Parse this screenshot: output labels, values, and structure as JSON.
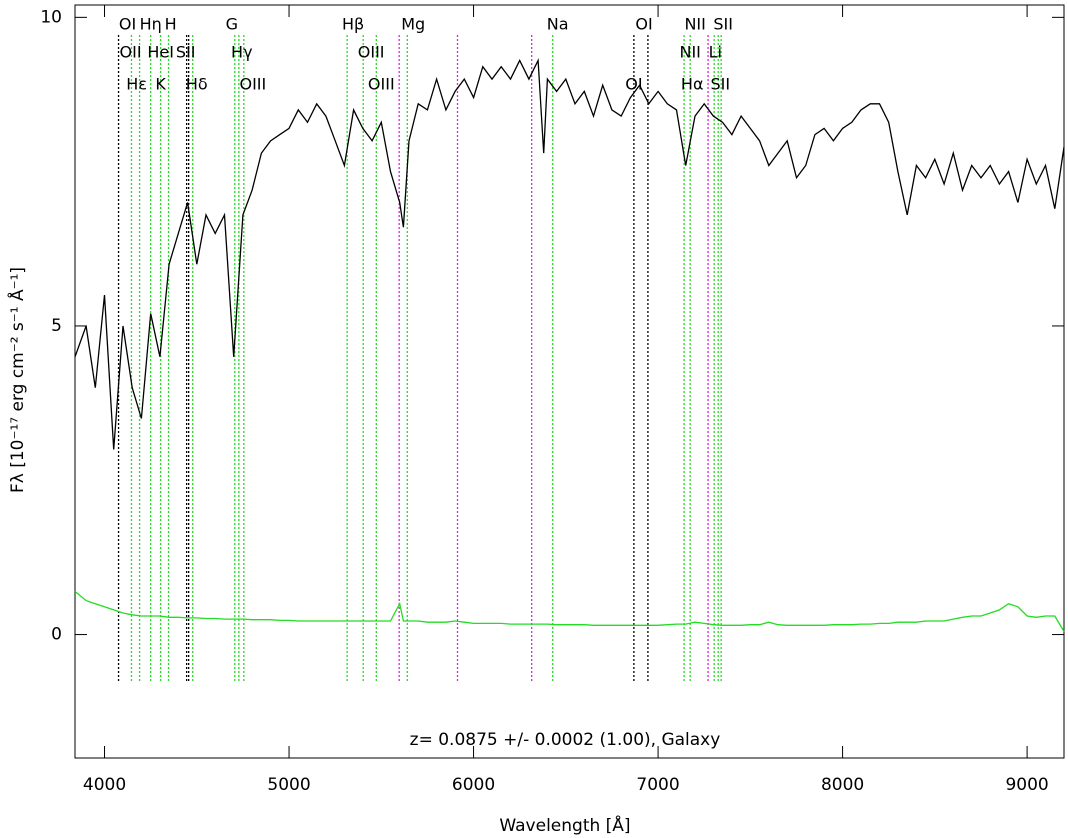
{
  "chart_data": {
    "type": "line",
    "xlabel": "Wavelength [Å]",
    "ylabel": "Fλ [10⁻¹⁷ erg cm⁻² s⁻¹ Å⁻¹]",
    "annotation": "z= 0.0875 +/- 0.0002 (1.00), Galaxy",
    "xlim": [
      3840,
      9200
    ],
    "ylim": [
      -2,
      10.2
    ],
    "xticks": [
      4000,
      5000,
      6000,
      7000,
      8000,
      9000
    ],
    "yticks": [
      0,
      5,
      10
    ],
    "x": [
      3840,
      3900,
      3950,
      4000,
      4050,
      4100,
      4150,
      4200,
      4250,
      4300,
      4350,
      4400,
      4450,
      4500,
      4550,
      4600,
      4650,
      4700,
      4750,
      4800,
      4850,
      4900,
      4950,
      5000,
      5050,
      5100,
      5150,
      5200,
      5250,
      5300,
      5350,
      5400,
      5450,
      5500,
      5550,
      5600,
      5620,
      5650,
      5700,
      5750,
      5800,
      5850,
      5900,
      5950,
      6000,
      6050,
      6100,
      6150,
      6200,
      6250,
      6300,
      6350,
      6380,
      6400,
      6450,
      6500,
      6550,
      6600,
      6650,
      6700,
      6750,
      6800,
      6850,
      6900,
      6950,
      7000,
      7050,
      7100,
      7150,
      7200,
      7250,
      7300,
      7350,
      7400,
      7450,
      7500,
      7550,
      7600,
      7650,
      7700,
      7750,
      7800,
      7850,
      7900,
      7950,
      8000,
      8050,
      8100,
      8150,
      8200,
      8250,
      8300,
      8350,
      8400,
      8450,
      8500,
      8550,
      8600,
      8650,
      8700,
      8750,
      8800,
      8850,
      8900,
      8950,
      9000,
      9050,
      9100,
      9150,
      9200
    ],
    "series": [
      {
        "color": "#000000",
        "values": [
          4.5,
          5.0,
          4.0,
          5.5,
          3.0,
          5.0,
          4.0,
          3.5,
          5.2,
          4.5,
          6.0,
          6.5,
          7.0,
          6.0,
          6.8,
          6.5,
          6.8,
          4.5,
          6.8,
          7.2,
          7.8,
          8.0,
          8.1,
          8.2,
          8.5,
          8.3,
          8.6,
          8.4,
          8.0,
          7.6,
          8.5,
          8.2,
          8.0,
          8.3,
          7.5,
          7.0,
          6.6,
          8.0,
          8.6,
          8.5,
          9.0,
          8.5,
          8.8,
          9.0,
          8.7,
          9.2,
          9.0,
          9.2,
          9.0,
          9.3,
          9.0,
          9.3,
          7.8,
          9.0,
          8.8,
          9.0,
          8.6,
          8.8,
          8.4,
          8.9,
          8.5,
          8.4,
          8.7,
          8.9,
          8.6,
          8.8,
          8.6,
          8.5,
          7.6,
          8.4,
          8.6,
          8.4,
          8.3,
          8.1,
          8.4,
          8.2,
          8.0,
          7.6,
          7.8,
          8.0,
          7.4,
          7.6,
          8.1,
          8.2,
          8.0,
          8.2,
          8.3,
          8.5,
          8.6,
          8.6,
          8.3,
          7.5,
          6.8,
          7.6,
          7.4,
          7.7,
          7.3,
          7.8,
          7.2,
          7.6,
          7.4,
          7.6,
          7.3,
          7.5,
          7.0,
          7.7,
          7.3,
          7.6,
          6.9,
          7.9
        ]
      },
      {
        "color": "#22dd22",
        "values": [
          0.7,
          0.55,
          0.5,
          0.45,
          0.4,
          0.35,
          0.32,
          0.3,
          0.3,
          0.3,
          0.28,
          0.28,
          0.27,
          0.27,
          0.26,
          0.26,
          0.25,
          0.25,
          0.25,
          0.24,
          0.24,
          0.24,
          0.23,
          0.23,
          0.22,
          0.22,
          0.22,
          0.22,
          0.22,
          0.22,
          0.22,
          0.22,
          0.22,
          0.22,
          0.22,
          0.5,
          0.22,
          0.22,
          0.22,
          0.2,
          0.2,
          0.2,
          0.22,
          0.2,
          0.18,
          0.18,
          0.18,
          0.18,
          0.17,
          0.17,
          0.17,
          0.17,
          0.17,
          0.17,
          0.16,
          0.16,
          0.16,
          0.16,
          0.15,
          0.15,
          0.15,
          0.15,
          0.15,
          0.15,
          0.15,
          0.15,
          0.16,
          0.17,
          0.17,
          0.2,
          0.18,
          0.16,
          0.15,
          0.15,
          0.15,
          0.16,
          0.16,
          0.2,
          0.16,
          0.15,
          0.15,
          0.15,
          0.15,
          0.15,
          0.16,
          0.16,
          0.16,
          0.17,
          0.17,
          0.18,
          0.18,
          0.2,
          0.2,
          0.2,
          0.22,
          0.22,
          0.22,
          0.25,
          0.28,
          0.3,
          0.3,
          0.35,
          0.4,
          0.5,
          0.45,
          0.3,
          0.28,
          0.3,
          0.3,
          0.05
        ]
      }
    ],
    "marker_lines": [
      {
        "color": "#000000",
        "x": [
          4076,
          4445,
          4456,
          6869,
          6945
        ]
      },
      {
        "color": "#22dd22",
        "x": [
          4146,
          4190,
          4250,
          4304,
          4347,
          4478,
          4706,
          4728,
          4755,
          5315,
          5402,
          5473,
          5641,
          6429,
          7141,
          7174,
          7304,
          7326,
          7342
        ]
      },
      {
        "color": "#dd22dd",
        "x": [
          5597,
          5913,
          6315,
          7271
        ]
      }
    ],
    "line_labels": [
      [
        {
          "label": "OI",
          "x": 4125
        },
        {
          "label": "Hη",
          "x": 4250
        },
        {
          "label": "H",
          "x": 4358
        },
        {
          "label": "G",
          "x": 4690
        },
        {
          "label": "Hβ",
          "x": 5347
        },
        {
          "label": "Mg",
          "x": 5673
        },
        {
          "label": "Na",
          "x": 6456
        },
        {
          "label": "OI",
          "x": 6924
        },
        {
          "label": "NII",
          "x": 7201
        },
        {
          "label": "SII",
          "x": 7353
        }
      ],
      [
        {
          "label": "OII",
          "x": 4141
        },
        {
          "label": "HeI",
          "x": 4304
        },
        {
          "label": "SII",
          "x": 4440
        },
        {
          "label": "Hγ",
          "x": 4744
        },
        {
          "label": "OIII",
          "x": 5445
        },
        {
          "label": "NII",
          "x": 7174
        },
        {
          "label": "Li",
          "x": 7310
        }
      ],
      [
        {
          "label": "Hε",
          "x": 4174
        },
        {
          "label": "K",
          "x": 4304
        },
        {
          "label": "Hδ",
          "x": 4500
        },
        {
          "label": "OIII",
          "x": 4804
        },
        {
          "label": "OIII",
          "x": 5500
        },
        {
          "label": "OI",
          "x": 6869
        },
        {
          "label": "Hα",
          "x": 7185
        },
        {
          "label": "SII",
          "x": 7337
        }
      ]
    ]
  }
}
